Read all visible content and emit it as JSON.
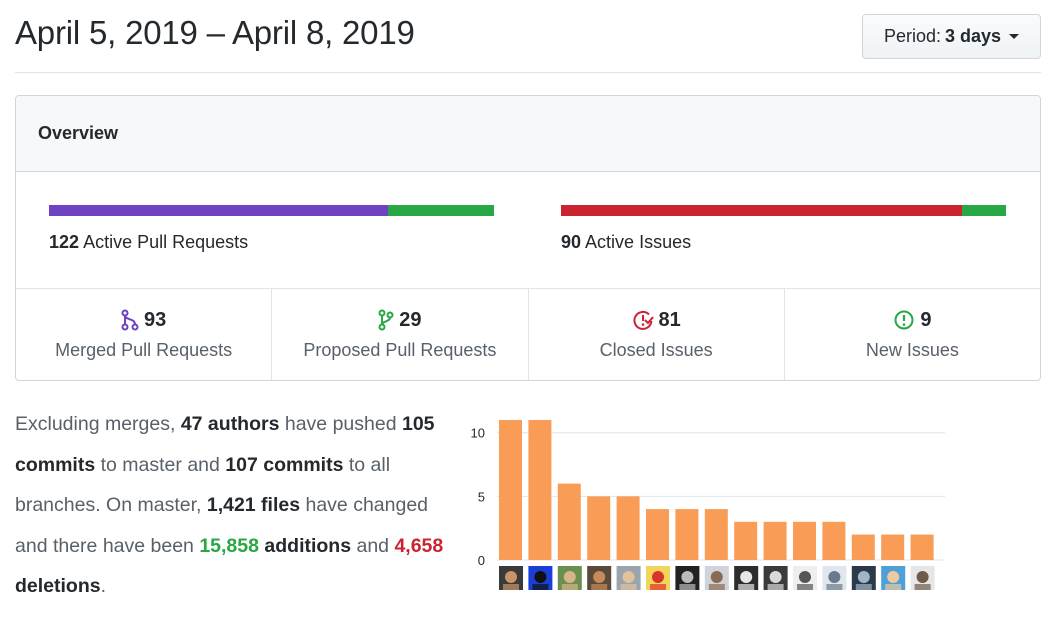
{
  "header": {
    "date_range": "April 5, 2019 – April 8, 2019",
    "period_label": "Period:",
    "period_value": "3 days"
  },
  "overview": {
    "title": "Overview",
    "pull_requests": {
      "count": "122",
      "label": "Active Pull Requests",
      "merged_fraction": 0.762,
      "colors": {
        "merged": "#6f42c1",
        "open": "#28a745"
      }
    },
    "issues": {
      "count": "90",
      "label": "Active Issues",
      "closed_fraction": 0.9,
      "colors": {
        "closed": "#cb2431",
        "new": "#28a745"
      }
    },
    "stats": [
      {
        "icon": "git-merge-icon",
        "value": "93",
        "label": "Merged Pull Requests",
        "color": "#6f42c1"
      },
      {
        "icon": "git-pull-request-icon",
        "value": "29",
        "label": "Proposed Pull Requests",
        "color": "#28a745"
      },
      {
        "icon": "issue-closed-icon",
        "value": "81",
        "label": "Closed Issues",
        "color": "#cb2431"
      },
      {
        "icon": "issue-opened-icon",
        "value": "9",
        "label": "New Issues",
        "color": "#28a745"
      }
    ]
  },
  "summary": {
    "t1": "Excluding merges, ",
    "authors": "47 authors",
    "t2": " have pushed ",
    "master_commits": "105 commits",
    "t3": " to master and ",
    "all_commits": "107 commits",
    "t4": " to all branches. On master, ",
    "files": "1,421 files",
    "t5": " have changed and there have been ",
    "additions_num": "15,858",
    "additions_word": " additions",
    "t6": " and ",
    "deletions_num": "4,658",
    "deletions_word": " deletions",
    "t7": "."
  },
  "chart_data": {
    "type": "bar",
    "values": [
      11,
      11,
      6,
      5,
      5,
      4,
      4,
      4,
      3,
      3,
      3,
      3,
      2,
      2,
      2
    ],
    "ylim": [
      0,
      11
    ],
    "yticks": [
      "0",
      "5",
      "10"
    ],
    "bar_color": "#f89c56",
    "grid": true
  }
}
